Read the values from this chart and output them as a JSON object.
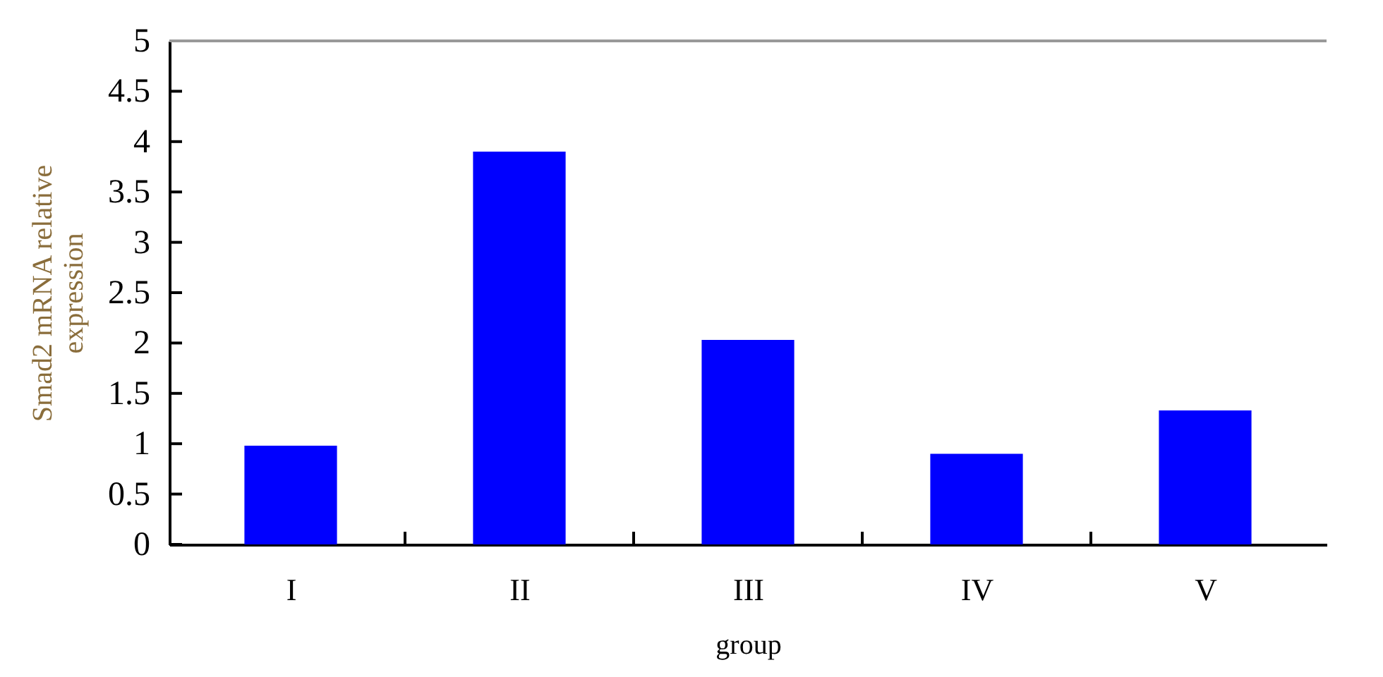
{
  "chart_data": {
    "type": "bar",
    "xlabel": "group",
    "ylabel": "Smad2 mRNA relative expression",
    "categories": [
      "I",
      "II",
      "III",
      "IV",
      "V"
    ],
    "values": [
      0.98,
      3.9,
      2.03,
      0.9,
      1.33
    ],
    "color": "#0000ff",
    "ylim": [
      0,
      5
    ],
    "yticks": [
      0,
      0.5,
      1,
      1.5,
      2,
      2.5,
      3,
      3.5,
      4,
      4.5,
      5
    ],
    "grid": false
  }
}
